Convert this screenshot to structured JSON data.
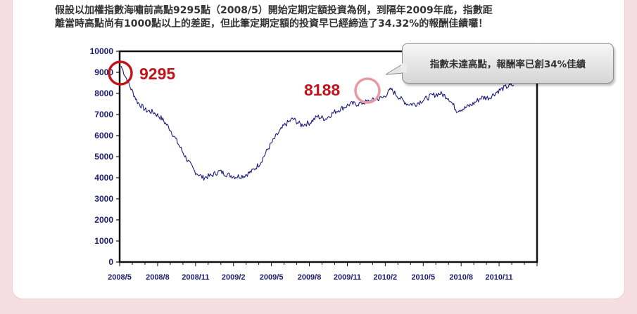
{
  "intro": {
    "line1": "假設以加權指數海嘯前高點9295點（2008/5）開始定期定額投資為例，到隔年2009年底，指數距",
    "line2": "離當時高點尚有1000點以上的差距，但此筆定期定額的投資早已經締造了34.32%的報酬佳績囉！"
  },
  "callout": {
    "text": "指數未達高點，報酬率已創34%佳績"
  },
  "chart_data": {
    "type": "line",
    "title": "",
    "xlabel": "",
    "ylabel": "",
    "ylim": [
      0,
      10000
    ],
    "yticks": [
      "10000",
      "9000",
      "8000",
      "7000",
      "6000",
      "5000",
      "4000",
      "3000",
      "2000",
      "1000",
      "0"
    ],
    "xticks": [
      "2008/5",
      "2008/8",
      "2008/11",
      "2009/2",
      "2009/5",
      "2009/8",
      "2009/11",
      "2010/2",
      "2010/5",
      "2010/8",
      "2010/11"
    ],
    "grid": false,
    "series": [
      {
        "values": [
          9295,
          8400,
          7600,
          7200,
          7100,
          6800,
          6300,
          5600,
          4900,
          4300,
          4000,
          4100,
          4300,
          4150,
          4050,
          4100,
          4300,
          4700,
          5400,
          6000,
          6500,
          6800,
          6500,
          6600,
          6900,
          6800,
          7100,
          7300,
          7500,
          7500,
          7600,
          7700,
          7800,
          8188,
          7800,
          7500,
          7500,
          7700,
          7900,
          8000,
          7800,
          7200,
          7300,
          7500,
          7800,
          7800,
          8100,
          8300,
          8400
        ]
      }
    ],
    "annotations": [
      {
        "label": "9295",
        "x": "2008/5",
        "y": 9295
      },
      {
        "label": "8188",
        "x": "2010/1",
        "y": 8188
      }
    ]
  }
}
